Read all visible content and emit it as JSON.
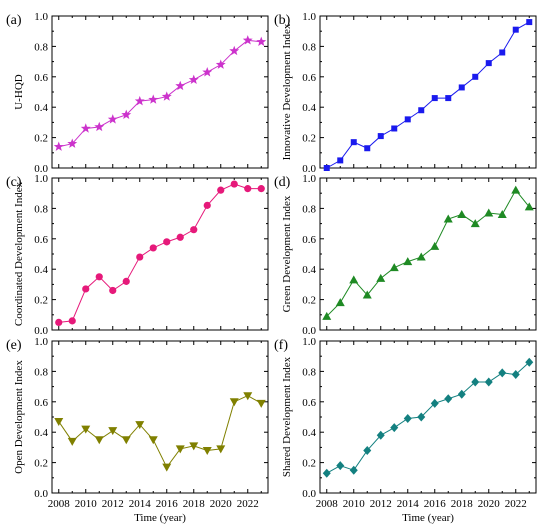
{
  "chart_data": [
    {
      "type": "line",
      "panel_label": "(a)",
      "ylabel": "U-HQD",
      "xlabel": "",
      "x": [
        2008,
        2009,
        2010,
        2011,
        2012,
        2013,
        2014,
        2015,
        2016,
        2017,
        2018,
        2019,
        2020,
        2021,
        2022,
        2023
      ],
      "series": [
        {
          "values": [
            0.14,
            0.16,
            0.26,
            0.27,
            0.32,
            0.35,
            0.44,
            0.45,
            0.47,
            0.54,
            0.58,
            0.63,
            0.68,
            0.77,
            0.84,
            0.83
          ]
        }
      ],
      "xlim": [
        2007.5,
        2023.5
      ],
      "ylim": [
        0.0,
        1.0
      ],
      "yticks": [
        "0.0",
        "0.2",
        "0.4",
        "0.6",
        "0.8",
        "1.0"
      ],
      "xticks": [],
      "marker": "star",
      "color": "#cc33cc"
    },
    {
      "type": "line",
      "panel_label": "(b)",
      "ylabel": "Innovative Development Index",
      "xlabel": "",
      "x": [
        2008,
        2009,
        2010,
        2011,
        2012,
        2013,
        2014,
        2015,
        2016,
        2017,
        2018,
        2019,
        2020,
        2021,
        2022,
        2023
      ],
      "series": [
        {
          "values": [
            0.0,
            0.05,
            0.17,
            0.13,
            0.21,
            0.26,
            0.32,
            0.38,
            0.46,
            0.46,
            0.53,
            0.6,
            0.69,
            0.76,
            0.91,
            0.96
          ]
        }
      ],
      "xlim": [
        2007.5,
        2023.5
      ],
      "ylim": [
        0.0,
        1.0
      ],
      "yticks": [
        "0.0",
        "0.2",
        "0.4",
        "0.6",
        "0.8",
        "1.0"
      ],
      "xticks": [],
      "marker": "square",
      "color": "#1a1aee"
    },
    {
      "type": "line",
      "panel_label": "(c)",
      "ylabel": "Coordinated Development Index",
      "xlabel": "",
      "x": [
        2008,
        2009,
        2010,
        2011,
        2012,
        2013,
        2014,
        2015,
        2016,
        2017,
        2018,
        2019,
        2020,
        2021,
        2022,
        2023
      ],
      "series": [
        {
          "values": [
            0.05,
            0.06,
            0.27,
            0.35,
            0.26,
            0.32,
            0.48,
            0.54,
            0.58,
            0.61,
            0.66,
            0.82,
            0.92,
            0.96,
            0.93,
            0.93
          ]
        }
      ],
      "xlim": [
        2007.5,
        2023.5
      ],
      "ylim": [
        0.0,
        1.0
      ],
      "yticks": [
        "0.0",
        "0.2",
        "0.4",
        "0.6",
        "0.8",
        "1.0"
      ],
      "xticks": [],
      "marker": "circle",
      "color": "#e6197a"
    },
    {
      "type": "line",
      "panel_label": "(d)",
      "ylabel": "Green Development Index",
      "xlabel": "",
      "x": [
        2008,
        2009,
        2010,
        2011,
        2012,
        2013,
        2014,
        2015,
        2016,
        2017,
        2018,
        2019,
        2020,
        2021,
        2022,
        2023
      ],
      "series": [
        {
          "values": [
            0.09,
            0.18,
            0.33,
            0.23,
            0.34,
            0.41,
            0.45,
            0.48,
            0.55,
            0.73,
            0.76,
            0.7,
            0.77,
            0.76,
            0.92,
            0.81
          ]
        }
      ],
      "xlim": [
        2007.5,
        2023.5
      ],
      "ylim": [
        0.0,
        1.0
      ],
      "yticks": [
        "0.0",
        "0.2",
        "0.4",
        "0.6",
        "0.8",
        "1.0"
      ],
      "xticks": [],
      "marker": "triangle-up",
      "color": "#1f8a24"
    },
    {
      "type": "line",
      "panel_label": "(e)",
      "ylabel": "Open Development Index",
      "xlabel": "Time (year)",
      "x": [
        2008,
        2009,
        2010,
        2011,
        2012,
        2013,
        2014,
        2015,
        2016,
        2017,
        2018,
        2019,
        2020,
        2021,
        2022,
        2023
      ],
      "series": [
        {
          "values": [
            0.47,
            0.34,
            0.42,
            0.35,
            0.41,
            0.35,
            0.45,
            0.35,
            0.17,
            0.29,
            0.31,
            0.28,
            0.29,
            0.6,
            0.64,
            0.59
          ]
        }
      ],
      "xlim": [
        2007.5,
        2023.5
      ],
      "ylim": [
        0.0,
        1.0
      ],
      "yticks": [
        "0.0",
        "0.2",
        "0.4",
        "0.6",
        "0.8",
        "1.0"
      ],
      "xticks": [
        "2008",
        "2010",
        "2012",
        "2014",
        "2016",
        "2018",
        "2020",
        "2022"
      ],
      "marker": "triangle-down",
      "color": "#808000"
    },
    {
      "type": "line",
      "panel_label": "(f)",
      "ylabel": "Shared Development Index",
      "xlabel": "Time (year)",
      "x": [
        2008,
        2009,
        2010,
        2011,
        2012,
        2013,
        2014,
        2015,
        2016,
        2017,
        2018,
        2019,
        2020,
        2021,
        2022,
        2023
      ],
      "series": [
        {
          "values": [
            0.13,
            0.18,
            0.15,
            0.28,
            0.38,
            0.43,
            0.49,
            0.5,
            0.59,
            0.62,
            0.65,
            0.73,
            0.73,
            0.79,
            0.78,
            0.86
          ]
        }
      ],
      "xlim": [
        2007.5,
        2023.5
      ],
      "ylim": [
        0.0,
        1.0
      ],
      "yticks": [
        "0.0",
        "0.2",
        "0.4",
        "0.6",
        "0.8",
        "1.0"
      ],
      "xticks": [
        "2008",
        "2010",
        "2012",
        "2014",
        "2016",
        "2018",
        "2020",
        "2022"
      ],
      "marker": "diamond",
      "color": "#138080"
    }
  ]
}
